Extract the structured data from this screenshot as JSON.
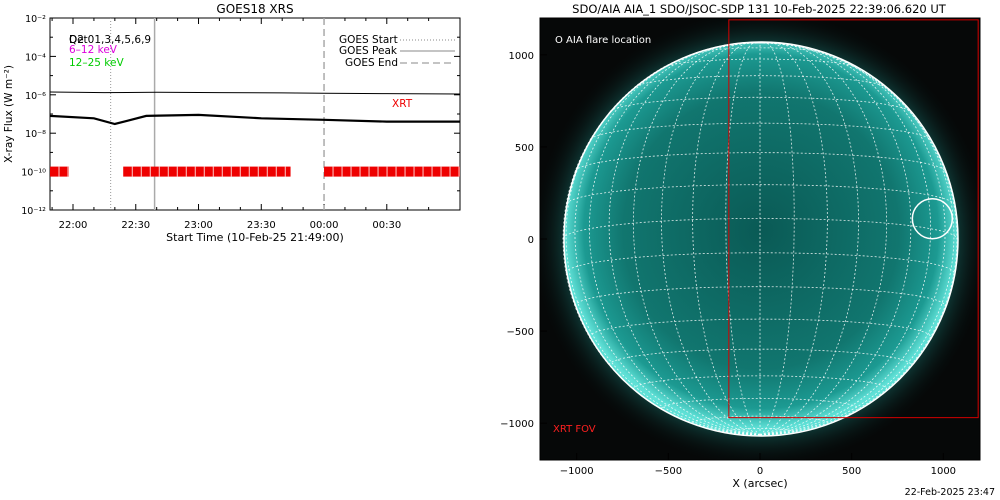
{
  "goes": {
    "title": "GOES18 XRS",
    "ylabel": "X-ray Flux (W m⁻²)",
    "xlabel": "Start Time (10-Feb-25 21:49:00)",
    "dets_label": "Det01,3,4,5,6,9",
    "dets_overlap": "Q2",
    "band_low": "6–12 keV",
    "band_high": "12–25 keV",
    "legend": [
      {
        "label": "GOES Start",
        "style": "dotted"
      },
      {
        "label": "GOES Peak",
        "style": "solid"
      },
      {
        "label": "GOES End",
        "style": "dashed"
      }
    ],
    "xrt_label": "XRT",
    "colors": {
      "band_low": "#dd00dd",
      "band_high": "#00cc00",
      "xrt": "#ee0000"
    }
  },
  "aia": {
    "title": "SDO/AIA AIA_1 SDO/JSOC-SDP 131 10-Feb-2025 22:39:06.620 UT",
    "flare_legend": "O AIA flare location",
    "xrt_fov_label": "XRT FOV",
    "xlabel": "X (arcsec)",
    "colors": {
      "disk": "#1a8c85",
      "fov": "#d40000"
    }
  },
  "timestamp": "22-Feb-2025 23:47",
  "chart_data": [
    {
      "type": "line",
      "title": "GOES18 XRS",
      "xlabel": "Start Time (10-Feb-25 21:49:00)",
      "ylabel": "X-ray Flux (W m⁻²)",
      "y_scale": "log",
      "xlim": [
        "21:49",
        "01:05"
      ],
      "ylim": [
        1e-12,
        0.01
      ],
      "x_ticks": [
        "22:00",
        "22:30",
        "23:00",
        "23:30",
        "00:00",
        "00:30"
      ],
      "y_ticks": [
        "10⁻¹²",
        "10⁻¹⁰",
        "10⁻⁸",
        "10⁻⁶",
        "10⁻⁴",
        "10⁻²"
      ],
      "series": [
        {
          "x": [
            "21:49",
            "22:15",
            "22:40",
            "23:10",
            "23:40",
            "00:00",
            "00:30",
            "01:05"
          ],
          "y": [
            1.4e-06,
            1.3e-06,
            1.35e-06,
            1.3e-06,
            1.25e-06,
            1.2e-06,
            1.15e-06,
            1.1e-06
          ]
        },
        {
          "x": [
            "21:49",
            "22:10",
            "22:20",
            "22:35",
            "23:00",
            "23:30",
            "00:00",
            "00:30",
            "01:05"
          ],
          "y": [
            8e-08,
            6e-08,
            3e-08,
            8e-08,
            9e-08,
            6e-08,
            5e-08,
            4e-08,
            4e-08
          ]
        }
      ],
      "markers": {
        "goes_start": "22:18",
        "goes_peak": "22:39",
        "goes_end": "00:00"
      },
      "xrt_coverage": [
        [
          "21:49",
          "21:58"
        ],
        [
          "22:24",
          "23:44"
        ],
        [
          "00:00",
          "01:05"
        ]
      ],
      "xrt_level": 1e-10
    },
    {
      "type": "heatmap",
      "title": "SDO/AIA AIA_1 SDO/JSOC-SDP 131 10-Feb-2025 22:39:06.620 UT",
      "xlabel": "X (arcsec)",
      "xlim": [
        -1200,
        1200
      ],
      "ylim": [
        -1200,
        1200
      ],
      "x_ticks": [
        "−1000",
        "−500",
        "0",
        "500",
        "1000"
      ],
      "y_ticks": [
        "−1000",
        "−500",
        "0",
        "500",
        "1000"
      ],
      "solar_radius_arcsec": 970,
      "flare_location": {
        "x": 940,
        "y": 110
      },
      "xrt_fov": {
        "x": [
          -170,
          1190
        ],
        "y": [
          -970,
          1190
        ]
      }
    }
  ]
}
